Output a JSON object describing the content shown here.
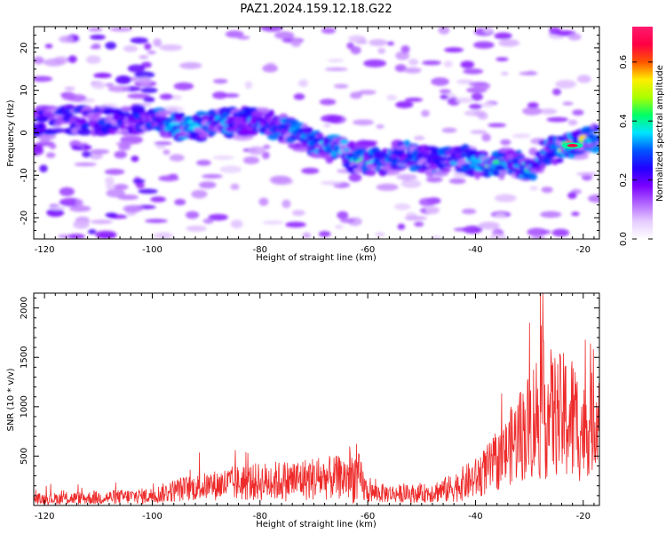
{
  "title": "PAZ1.2024.159.12.18.G22",
  "chart_data": [
    {
      "type": "heatmap",
      "xlabel": "Height of straight line (km)",
      "ylabel": "Frequency (Hz)",
      "xlim": [
        -122,
        -17
      ],
      "ylim": [
        -25,
        25
      ],
      "xticks": [
        -120,
        -100,
        -80,
        -60,
        -40,
        -20
      ],
      "yticks": [
        20,
        10,
        0,
        -10,
        -20
      ],
      "colorbar": {
        "label": "Normalized spectral amplitude",
        "range": [
          0,
          0.72
        ],
        "ticks": [
          "0.0",
          "0.2",
          "0.4",
          "0.6"
        ],
        "tick_values": [
          0.0,
          0.2,
          0.4,
          0.6
        ],
        "colors": [
          "#ffffff",
          "#e6ccff",
          "#b266ff",
          "#7a00ff",
          "#2200ff",
          "#0055ff",
          "#00e5ff",
          "#00ff66",
          "#aaff00",
          "#ffee00",
          "#ff5500",
          "#ff0044",
          "#ff1a6e"
        ]
      },
      "ridge": {
        "description_points_x_km": [
          -100,
          -95,
          -88,
          -80,
          -74,
          -70,
          -66,
          -62,
          -58,
          -54,
          -50,
          -46,
          -42,
          -38,
          -34,
          -30,
          -26,
          -22,
          -17
        ],
        "frequency_hz": [
          3,
          1.5,
          2,
          3,
          0,
          -2,
          -4,
          -6,
          -7,
          -5,
          -6,
          -7,
          -6,
          -8,
          -7,
          -8,
          -4,
          -3,
          -1
        ],
        "peak_amplitude": [
          0.2,
          0.42,
          0.3,
          0.25,
          0.25,
          0.35,
          0.4,
          0.45,
          0.35,
          0.3,
          0.28,
          0.25,
          0.35,
          0.55,
          0.35,
          0.4,
          0.3,
          0.7,
          0.35
        ]
      },
      "grid": false
    },
    {
      "type": "line",
      "xlabel": "Height of straight line (km)",
      "ylabel": "SNR (10 * v/v)",
      "xlim": [
        -122,
        -17
      ],
      "ylim": [
        0,
        2150
      ],
      "xticks": [
        -120,
        -100,
        -80,
        -60,
        -40,
        -20
      ],
      "yticks": [
        500,
        1000,
        1500,
        2000
      ],
      "color": "#ee2a2a",
      "envelope": {
        "x": [
          -122,
          -110,
          -100,
          -95,
          -90,
          -86,
          -80,
          -75,
          -70,
          -65,
          -62,
          -60,
          -55,
          -50,
          -45,
          -40,
          -35,
          -33,
          -30,
          -28,
          -25,
          -22,
          -20,
          -18,
          -17
        ],
        "baseline": [
          60,
          70,
          90,
          150,
          180,
          200,
          220,
          230,
          250,
          260,
          270,
          120,
          110,
          110,
          150,
          250,
          450,
          600,
          750,
          900,
          850,
          800,
          700,
          800,
          950
        ],
        "amplitude": [
          80,
          100,
          120,
          180,
          200,
          250,
          280,
          300,
          320,
          320,
          420,
          150,
          130,
          130,
          200,
          300,
          450,
          600,
          800,
          1050,
          900,
          1000,
          700,
          750,
          650
        ]
      },
      "grid": false
    }
  ]
}
